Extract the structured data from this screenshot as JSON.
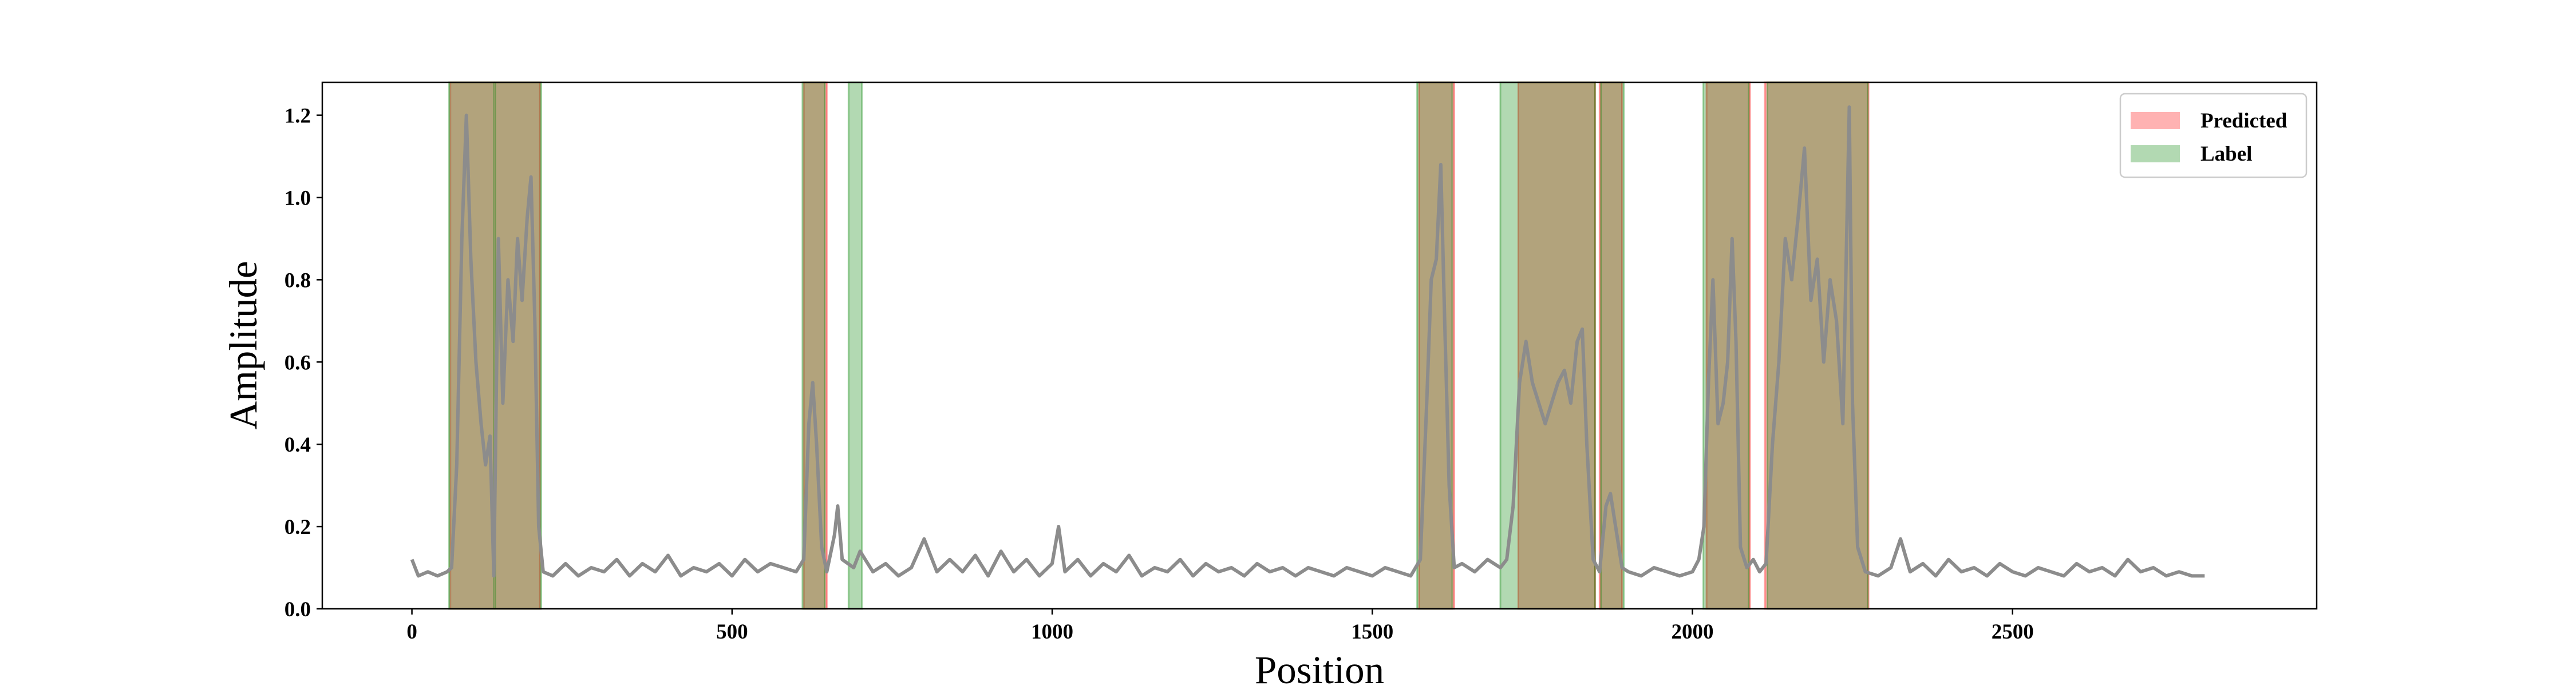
{
  "chart_data": {
    "type": "line",
    "xlabel": "Position",
    "ylabel": "Amplitude",
    "xlim": [
      -140,
      2975
    ],
    "ylim": [
      0,
      1.28
    ],
    "xticks": [
      0,
      500,
      1000,
      1500,
      2000,
      2500
    ],
    "yticks": [
      {
        "value": 0,
        "label": "0.0"
      },
      0.2,
      0.4,
      0.6,
      0.8,
      {
        "value": 1,
        "label": "1.0"
      },
      1.2
    ],
    "legend": "upper right",
    "line": {
      "color": "#8c8c8c",
      "x": [
        0,
        10,
        25,
        40,
        55,
        62,
        70,
        78,
        85,
        92,
        100,
        108,
        115,
        122,
        128,
        135,
        142,
        150,
        158,
        165,
        172,
        180,
        186,
        192,
        198,
        205,
        220,
        240,
        260,
        280,
        300,
        320,
        340,
        360,
        380,
        400,
        420,
        440,
        460,
        480,
        500,
        520,
        540,
        560,
        580,
        600,
        612,
        620,
        626,
        632,
        640,
        648,
        660,
        665,
        672,
        690,
        700,
        720,
        740,
        760,
        780,
        800,
        820,
        840,
        860,
        880,
        900,
        920,
        940,
        960,
        980,
        1000,
        1010,
        1020,
        1040,
        1060,
        1080,
        1100,
        1120,
        1140,
        1160,
        1180,
        1200,
        1220,
        1240,
        1260,
        1280,
        1300,
        1320,
        1340,
        1360,
        1380,
        1400,
        1420,
        1440,
        1460,
        1480,
        1500,
        1520,
        1540,
        1560,
        1575,
        1585,
        1592,
        1600,
        1607,
        1613,
        1620,
        1628,
        1640,
        1660,
        1680,
        1700,
        1710,
        1720,
        1730,
        1740,
        1750,
        1760,
        1770,
        1780,
        1790,
        1800,
        1810,
        1820,
        1828,
        1835,
        1845,
        1855,
        1865,
        1872,
        1880,
        1890,
        1900,
        1920,
        1940,
        1960,
        1980,
        2000,
        2010,
        2018,
        2025,
        2032,
        2040,
        2048,
        2055,
        2062,
        2068,
        2075,
        2085,
        2095,
        2105,
        2115,
        2125,
        2135,
        2145,
        2155,
        2165,
        2175,
        2185,
        2195,
        2205,
        2215,
        2225,
        2235,
        2245,
        2250,
        2258,
        2270,
        2290,
        2310,
        2325,
        2340,
        2360,
        2380,
        2400,
        2420,
        2440,
        2460,
        2480,
        2500,
        2520,
        2540,
        2560,
        2580,
        2600,
        2620,
        2640,
        2660,
        2680,
        2700,
        2720,
        2740,
        2760,
        2780,
        2800
      ],
      "y": [
        0.12,
        0.08,
        0.09,
        0.08,
        0.09,
        0.1,
        0.35,
        0.9,
        1.2,
        0.85,
        0.6,
        0.45,
        0.35,
        0.42,
        0.08,
        0.9,
        0.5,
        0.8,
        0.65,
        0.9,
        0.75,
        0.95,
        1.05,
        0.7,
        0.2,
        0.09,
        0.08,
        0.11,
        0.08,
        0.1,
        0.09,
        0.12,
        0.08,
        0.11,
        0.09,
        0.13,
        0.08,
        0.1,
        0.09,
        0.11,
        0.08,
        0.12,
        0.09,
        0.11,
        0.1,
        0.09,
        0.12,
        0.45,
        0.55,
        0.4,
        0.15,
        0.09,
        0.18,
        0.25,
        0.12,
        0.1,
        0.14,
        0.09,
        0.11,
        0.08,
        0.1,
        0.17,
        0.09,
        0.12,
        0.09,
        0.13,
        0.08,
        0.14,
        0.09,
        0.12,
        0.08,
        0.11,
        0.2,
        0.09,
        0.12,
        0.08,
        0.11,
        0.09,
        0.13,
        0.08,
        0.1,
        0.09,
        0.12,
        0.08,
        0.11,
        0.09,
        0.1,
        0.08,
        0.11,
        0.09,
        0.1,
        0.08,
        0.1,
        0.09,
        0.08,
        0.1,
        0.09,
        0.08,
        0.1,
        0.09,
        0.08,
        0.12,
        0.5,
        0.8,
        0.85,
        1.08,
        0.7,
        0.3,
        0.1,
        0.11,
        0.09,
        0.12,
        0.1,
        0.12,
        0.25,
        0.55,
        0.65,
        0.55,
        0.5,
        0.45,
        0.5,
        0.55,
        0.58,
        0.5,
        0.65,
        0.68,
        0.4,
        0.12,
        0.09,
        0.25,
        0.28,
        0.2,
        0.1,
        0.09,
        0.08,
        0.1,
        0.09,
        0.08,
        0.09,
        0.12,
        0.2,
        0.55,
        0.8,
        0.45,
        0.5,
        0.6,
        0.9,
        0.65,
        0.15,
        0.1,
        0.12,
        0.09,
        0.11,
        0.4,
        0.6,
        0.9,
        0.8,
        0.95,
        1.12,
        0.75,
        0.85,
        0.6,
        0.8,
        0.7,
        0.45,
        1.22,
        0.5,
        0.15,
        0.09,
        0.08,
        0.1,
        0.17,
        0.09,
        0.11,
        0.08,
        0.12,
        0.09,
        0.1,
        0.08,
        0.11,
        0.09,
        0.08,
        0.1,
        0.09,
        0.08,
        0.11,
        0.09,
        0.1,
        0.08,
        0.12,
        0.09,
        0.1,
        0.08,
        0.09,
        0.08,
        0.08
      ]
    },
    "spans": [
      {
        "name": "Predicted",
        "color": "#ff0000",
        "ranges": [
          [
            60,
            200
          ],
          [
            612,
            648
          ],
          [
            1573,
            1628
          ],
          [
            1728,
            1848
          ],
          [
            1855,
            1890
          ],
          [
            2022,
            2090
          ],
          [
            2113,
            2275
          ]
        ]
      },
      {
        "name": "Label",
        "color": "#008000",
        "ranges": [
          [
            58,
            128
          ],
          [
            130,
            202
          ],
          [
            610,
            645
          ],
          [
            682,
            703
          ],
          [
            1570,
            1625
          ],
          [
            1700,
            1848
          ],
          [
            1857,
            1893
          ],
          [
            2017,
            2088
          ],
          [
            2117,
            2274
          ]
        ]
      }
    ]
  }
}
